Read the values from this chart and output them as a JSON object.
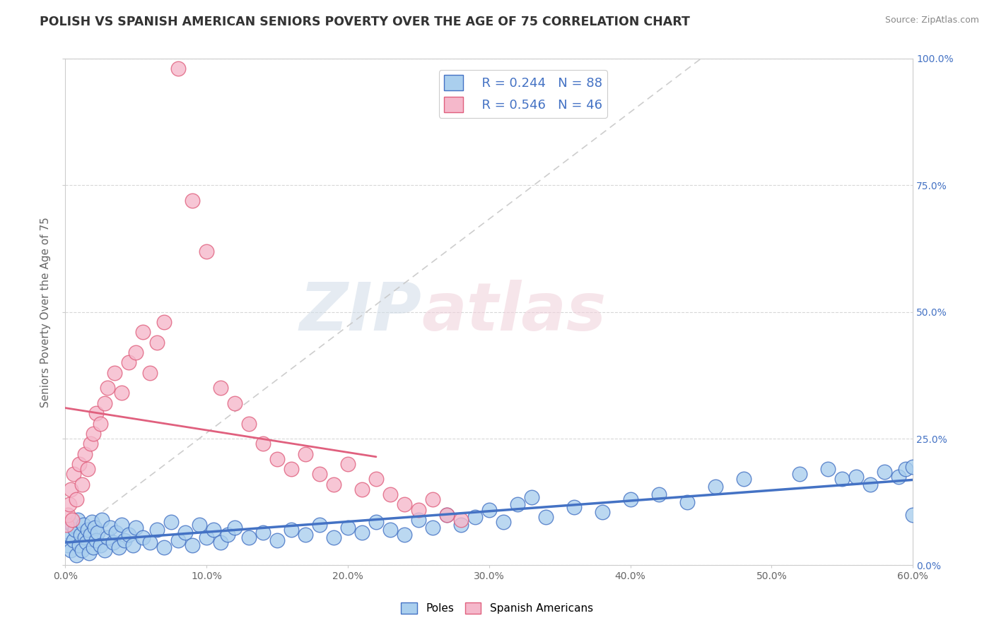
{
  "title": "POLISH VS SPANISH AMERICAN SENIORS POVERTY OVER THE AGE OF 75 CORRELATION CHART",
  "source": "Source: ZipAtlas.com",
  "ylabel": "Seniors Poverty Over the Age of 75",
  "xlim": [
    0.0,
    0.6
  ],
  "ylim": [
    0.0,
    1.0
  ],
  "x_tick_vals": [
    0.0,
    0.1,
    0.2,
    0.3,
    0.4,
    0.5,
    0.6
  ],
  "x_tick_labels": [
    "0.0%",
    "10.0%",
    "20.0%",
    "30.0%",
    "40.0%",
    "50.0%",
    "60.0%"
  ],
  "y_tick_vals": [
    0.0,
    0.25,
    0.5,
    0.75,
    1.0
  ],
  "y_tick_labels": [
    "0.0%",
    "25.0%",
    "50.0%",
    "75.0%",
    "100.0%"
  ],
  "poles_R": 0.244,
  "poles_N": 88,
  "spanish_R": 0.546,
  "spanish_N": 46,
  "poles_color": "#aacfee",
  "poles_edge_color": "#4472c4",
  "spanish_color": "#f5b8cb",
  "spanish_edge_color": "#e0607e",
  "poles_line_color": "#4472c4",
  "spanish_line_color": "#e0607e",
  "gray_line_color": "#cccccc",
  "watermark_color": "#d0dce8",
  "watermark_pink": "#f0d0da",
  "poles_x": [
    0.002,
    0.003,
    0.004,
    0.005,
    0.006,
    0.007,
    0.008,
    0.009,
    0.01,
    0.011,
    0.012,
    0.013,
    0.014,
    0.015,
    0.016,
    0.017,
    0.018,
    0.019,
    0.02,
    0.021,
    0.022,
    0.023,
    0.025,
    0.026,
    0.028,
    0.03,
    0.032,
    0.034,
    0.036,
    0.038,
    0.04,
    0.042,
    0.045,
    0.048,
    0.05,
    0.055,
    0.06,
    0.065,
    0.07,
    0.075,
    0.08,
    0.085,
    0.09,
    0.095,
    0.1,
    0.105,
    0.11,
    0.115,
    0.12,
    0.13,
    0.14,
    0.15,
    0.16,
    0.17,
    0.18,
    0.19,
    0.2,
    0.21,
    0.22,
    0.23,
    0.24,
    0.25,
    0.26,
    0.27,
    0.28,
    0.29,
    0.3,
    0.31,
    0.32,
    0.33,
    0.34,
    0.36,
    0.38,
    0.4,
    0.42,
    0.44,
    0.46,
    0.48,
    0.52,
    0.54,
    0.55,
    0.56,
    0.57,
    0.58,
    0.59,
    0.595,
    0.6,
    0.6
  ],
  "poles_y": [
    0.04,
    0.06,
    0.03,
    0.08,
    0.05,
    0.07,
    0.02,
    0.09,
    0.04,
    0.06,
    0.03,
    0.08,
    0.055,
    0.045,
    0.07,
    0.025,
    0.06,
    0.085,
    0.035,
    0.075,
    0.05,
    0.065,
    0.04,
    0.09,
    0.03,
    0.055,
    0.075,
    0.045,
    0.065,
    0.035,
    0.08,
    0.05,
    0.06,
    0.04,
    0.075,
    0.055,
    0.045,
    0.07,
    0.035,
    0.085,
    0.05,
    0.065,
    0.04,
    0.08,
    0.055,
    0.07,
    0.045,
    0.06,
    0.075,
    0.055,
    0.065,
    0.05,
    0.07,
    0.06,
    0.08,
    0.055,
    0.075,
    0.065,
    0.085,
    0.07,
    0.06,
    0.09,
    0.075,
    0.1,
    0.08,
    0.095,
    0.11,
    0.085,
    0.12,
    0.135,
    0.095,
    0.115,
    0.105,
    0.13,
    0.14,
    0.125,
    0.155,
    0.17,
    0.18,
    0.19,
    0.17,
    0.175,
    0.16,
    0.185,
    0.175,
    0.19,
    0.195,
    0.1
  ],
  "spanish_x": [
    0.001,
    0.002,
    0.003,
    0.004,
    0.005,
    0.006,
    0.008,
    0.01,
    0.012,
    0.014,
    0.016,
    0.018,
    0.02,
    0.022,
    0.025,
    0.028,
    0.03,
    0.035,
    0.04,
    0.045,
    0.05,
    0.055,
    0.06,
    0.065,
    0.07,
    0.08,
    0.09,
    0.1,
    0.11,
    0.12,
    0.13,
    0.14,
    0.15,
    0.16,
    0.17,
    0.18,
    0.19,
    0.2,
    0.21,
    0.22,
    0.23,
    0.24,
    0.25,
    0.26,
    0.27,
    0.28
  ],
  "spanish_y": [
    0.08,
    0.1,
    0.12,
    0.15,
    0.09,
    0.18,
    0.13,
    0.2,
    0.16,
    0.22,
    0.19,
    0.24,
    0.26,
    0.3,
    0.28,
    0.32,
    0.35,
    0.38,
    0.34,
    0.4,
    0.42,
    0.46,
    0.38,
    0.44,
    0.48,
    0.98,
    0.72,
    0.62,
    0.35,
    0.32,
    0.28,
    0.24,
    0.21,
    0.19,
    0.22,
    0.18,
    0.16,
    0.2,
    0.15,
    0.17,
    0.14,
    0.12,
    0.11,
    0.13,
    0.1,
    0.09
  ]
}
